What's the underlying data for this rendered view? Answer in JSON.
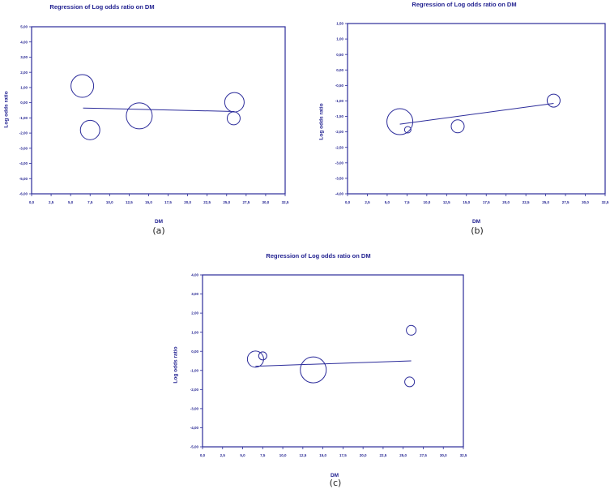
{
  "colors": {
    "axis": "#2b2b9a",
    "text": "#1f1f8f",
    "marker": "#2b2b9a"
  },
  "chart_data": [
    {
      "id": "a",
      "type": "scatter",
      "title": "Regression of Log odds ratio on DM",
      "xlabel": "DM",
      "ylabel": "Log odds ratio",
      "caption": "(a)",
      "xlim": [
        0,
        32.5
      ],
      "ylim": [
        -6,
        5
      ],
      "xticks": [
        "0,0",
        "2,5",
        "5,0",
        "7,5",
        "10,0",
        "12,5",
        "15,0",
        "17,5",
        "20,0",
        "22,5",
        "25,0",
        "27,5",
        "30,0",
        "32,5"
      ],
      "yticks": [
        "5,00",
        "4,00",
        "3,00",
        "2,00",
        "1,00",
        "0,00",
        "-1,00",
        "-2,00",
        "-3,00",
        "-4,00",
        "-5,00",
        "-6,00"
      ],
      "grid": false,
      "points": [
        {
          "x": 6.5,
          "y": 1.1,
          "size": 14
        },
        {
          "x": 7.5,
          "y": -1.8,
          "size": 12
        },
        {
          "x": 13.8,
          "y": -0.87,
          "size": 16
        },
        {
          "x": 26.0,
          "y": 0.03,
          "size": 12
        },
        {
          "x": 25.9,
          "y": -1.03,
          "size": 8
        }
      ],
      "regression_line": {
        "x": [
          6.6,
          26.0
        ],
        "y": [
          -0.35,
          -0.58
        ]
      }
    },
    {
      "id": "b",
      "type": "scatter",
      "title": "Regression of Log odds ratio on DM",
      "xlabel": "DM",
      "ylabel": "Log odds ratio",
      "caption": "(b)",
      "xlim": [
        0,
        32.5
      ],
      "ylim": [
        -4,
        1.5
      ],
      "xticks": [
        "0,0",
        "2,5",
        "5,0",
        "7,5",
        "10,0",
        "12,5",
        "15,0",
        "17,5",
        "20,0",
        "22,5",
        "25,0",
        "27,5",
        "30,0",
        "32,5"
      ],
      "yticks": [
        "1,50",
        "1,00",
        "0,50",
        "0,00",
        "-0,50",
        "-1,00",
        "-1,50",
        "-2,00",
        "-2,50",
        "-3,00",
        "-3,50",
        "-4,00"
      ],
      "grid": false,
      "points": [
        {
          "x": 6.6,
          "y": -1.67,
          "size": 16
        },
        {
          "x": 7.6,
          "y": -1.93,
          "size": 4
        },
        {
          "x": 13.9,
          "y": -1.82,
          "size": 8
        },
        {
          "x": 26.0,
          "y": -0.99,
          "size": 8
        }
      ],
      "regression_line": {
        "x": [
          6.6,
          26.0
        ],
        "y": [
          -1.75,
          -1.08
        ]
      }
    },
    {
      "id": "c",
      "type": "scatter",
      "title": "Regression of Log odds ratio on DM",
      "xlabel": "DM",
      "ylabel": "Log odds ratio",
      "caption": "(c)",
      "xlim": [
        0,
        32.5
      ],
      "ylim": [
        -5,
        4
      ],
      "xticks": [
        "0,0",
        "2,5",
        "5,0",
        "7,5",
        "10,0",
        "12,5",
        "15,0",
        "17,5",
        "20,0",
        "22,5",
        "25,0",
        "27,5",
        "30,0",
        "32,5"
      ],
      "yticks": [
        "4,00",
        "3,00",
        "2,00",
        "1,00",
        "0,00",
        "-1,00",
        "-2,00",
        "-3,00",
        "-4,00",
        "-5,00"
      ],
      "grid": false,
      "points": [
        {
          "x": 6.6,
          "y": -0.41,
          "size": 10
        },
        {
          "x": 7.5,
          "y": -0.24,
          "size": 5
        },
        {
          "x": 13.8,
          "y": -0.97,
          "size": 16
        },
        {
          "x": 26.0,
          "y": 1.1,
          "size": 6
        },
        {
          "x": 25.8,
          "y": -1.6,
          "size": 6
        }
      ],
      "regression_line": {
        "x": [
          6.6,
          26.0
        ],
        "y": [
          -0.78,
          -0.5
        ]
      }
    }
  ]
}
